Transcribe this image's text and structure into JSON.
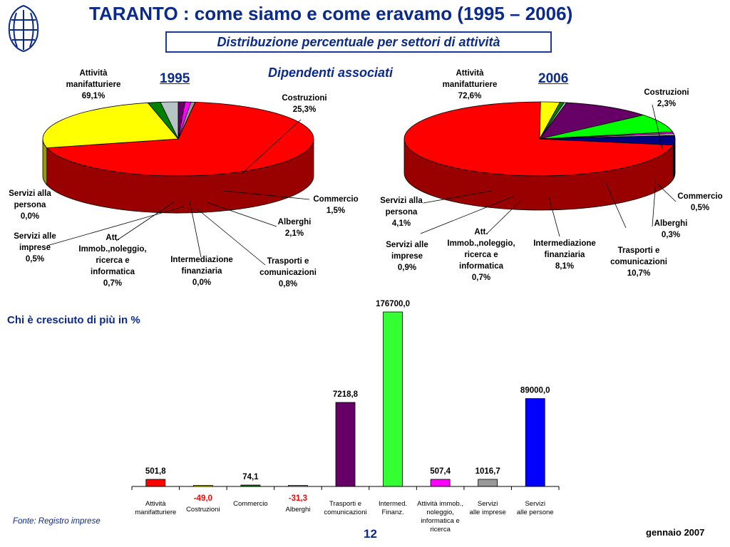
{
  "header": {
    "title": "TARANTO : come siamo e come eravamo (1995 – 2006)",
    "subtitle": "Distribuzione percentuale per settori di attività",
    "section_title": "Dipendenti associati"
  },
  "logo": {
    "name": "logo-icon"
  },
  "growth_title": "Chi è cresciuto di più in %",
  "footer": {
    "source": "Fonte: Registro imprese",
    "page": "12",
    "date": "gennaio 2007"
  },
  "colors": {
    "title_blue": "#0a2a8c"
  },
  "chart_data": [
    {
      "type": "pie",
      "title": "1995",
      "slices": [
        {
          "label": "Attività\nmanifatturiere\n69,1%",
          "value": 69.1,
          "color": "#ff0000",
          "side": "#990000"
        },
        {
          "label": "Costruzioni\n25,3%",
          "value": 25.3,
          "color": "#ffff00",
          "side": "#999900"
        },
        {
          "label": "Commercio\n1,5%",
          "value": 1.5,
          "color": "#008000",
          "side": "#004d00"
        },
        {
          "label": "Alberghi\n2,1%",
          "value": 2.1,
          "color": "#b7c4c4",
          "side": "#7c8c8c"
        },
        {
          "label": "Trasporti e\ncomunicazioni\n0,8%",
          "value": 0.8,
          "color": "#660066",
          "side": "#3a0f3a"
        },
        {
          "label": "Intermediazione\nfinanziaria\n0,0%",
          "value": 0.0,
          "color": "#00cc00",
          "side": "#007a00"
        },
        {
          "label": "Att.\nImmob.,noleggio,\nricerca e\ninformatica\n0,7%",
          "value": 0.7,
          "color": "#ff00ff",
          "side": "#990099"
        },
        {
          "label": "Servizi alle\nimprese\n0,5%",
          "value": 0.5,
          "color": "#999999",
          "side": "#5c5c5c"
        },
        {
          "label": "Servizi alla\npersona\n0,0%",
          "value": 0.0,
          "color": "#e0ffff",
          "side": "#a0b8b8"
        }
      ]
    },
    {
      "type": "pie",
      "title": "2006",
      "slices": [
        {
          "label": "Attività\nmanifatturiere\n72,6%",
          "value": 72.6,
          "color": "#ff0000",
          "side": "#990000"
        },
        {
          "label": "Costruzioni\n2,3%",
          "value": 2.3,
          "color": "#ffff00",
          "side": "#999900"
        },
        {
          "label": "Commercio\n0,5%",
          "value": 0.5,
          "color": "#008000",
          "side": "#004d00"
        },
        {
          "label": "Alberghi\n0,3%",
          "value": 0.3,
          "color": "#b7c4c4",
          "side": "#7c8c8c"
        },
        {
          "label": "Trasporti e\ncomunicazioni\n10,7%",
          "value": 10.7,
          "color": "#660066",
          "side": "#3a0f3a"
        },
        {
          "label": "Intermediazione\nfinanziaria\n8,1%",
          "value": 8.1,
          "color": "#00ff00",
          "side": "#009900"
        },
        {
          "label": "Att.\nImmob.,noleggio,\nricerca e\ninformatica\n0,7%",
          "value": 0.7,
          "color": "#ff00ff",
          "side": "#990099"
        },
        {
          "label": "Servizi alle\nimprese\n0,9%",
          "value": 0.9,
          "color": "#999999",
          "side": "#5c5c5c"
        },
        {
          "label": "Servizi alla\npersona\n4,1%",
          "value": 4.1,
          "color": "#000080",
          "side": "#00003d"
        }
      ]
    },
    {
      "type": "bar",
      "title": "Chi è cresciuto di più in %",
      "categories": [
        "Attività\nmanifatturiere",
        "Costruzioni",
        "Commercio",
        "Alberghi",
        "Trasporti e\ncomunicazioni",
        "Intermed.\nFinanz.",
        "Attività immob.,\nnoleggio,\ninformatica e\nricerca",
        "Servizi\nalle imprese",
        "Servizi\nalle persone"
      ],
      "values": [
        501.8,
        -49.0,
        74.1,
        -31.3,
        7218.8,
        176700.0,
        507.4,
        1016.7,
        89000.0
      ],
      "value_labels": [
        "501,8",
        "-49,0",
        "74,1",
        "-31,3",
        "7218,8",
        "176700,0",
        "507,4",
        "1016,7",
        "89000,0"
      ],
      "colors": [
        "#ff0000",
        "#ffff00",
        "#008000",
        "#b7c4c4",
        "#660066",
        "#33ff33",
        "#ff00ff",
        "#999999",
        "#0000ff"
      ],
      "negative_label_color": "#ff0000"
    }
  ]
}
